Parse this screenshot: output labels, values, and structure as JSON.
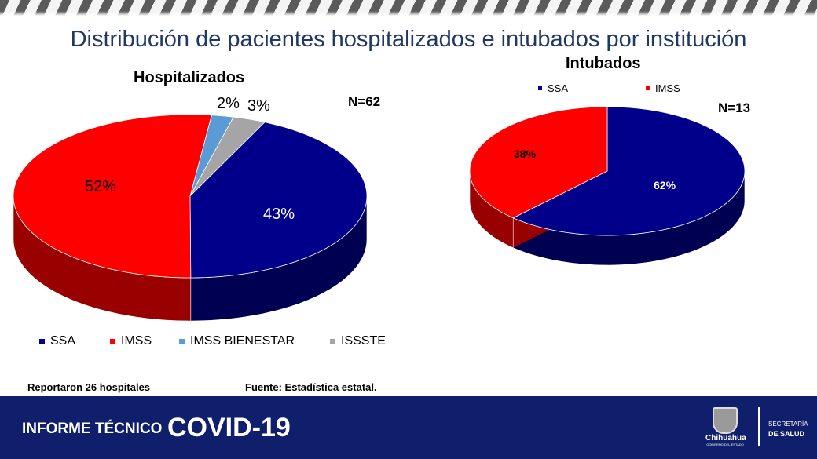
{
  "page": {
    "title": "Distribución de pacientes hospitalizados e intubados por institución",
    "note_left": "Reportaron 26 hospitales",
    "note_right": "Fuente: Estadística estatal."
  },
  "footer": {
    "label": "INFORME TÉCNICO",
    "brand": "COVID-19",
    "logo_text": "Chihuahua",
    "logo_sub": "GOBIERNO DEL ESTADO",
    "sec1": "SECRETARÍA",
    "sec2": "DE SALUD"
  },
  "chart_data": [
    {
      "type": "pie",
      "title": "Hospitalizados",
      "n_label": "N=62",
      "categories": [
        "SSA",
        "IMSS",
        "IMSS BIENESTAR",
        "ISSSTE"
      ],
      "values": [
        43,
        52,
        2,
        3
      ],
      "labels": [
        "43%",
        "52%",
        "2%",
        "3%"
      ],
      "colors": [
        "#00008b",
        "#ff0000",
        "#5b9bd5",
        "#a5a5a5"
      ],
      "legend": "bottom"
    },
    {
      "type": "pie",
      "title": "Intubados",
      "n_label": "N=13",
      "categories": [
        "SSA",
        "IMSS"
      ],
      "values": [
        62,
        38
      ],
      "labels": [
        "62%",
        "38%"
      ],
      "colors": [
        "#00008b",
        "#ff0000"
      ],
      "legend": "top"
    }
  ]
}
